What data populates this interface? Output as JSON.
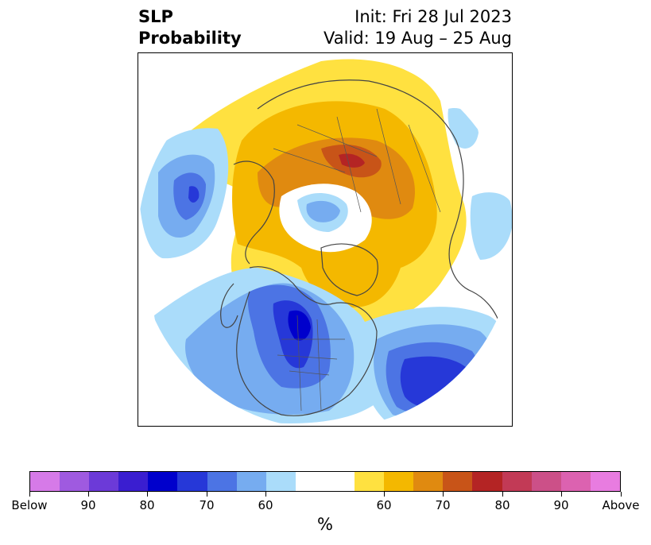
{
  "title": {
    "left_line1": "SLP",
    "left_line2": "Probability",
    "right_line1": "Init: Fri 28 Jul 2023",
    "right_line2": "Valid: 19 Aug – 25 Aug"
  },
  "colorbar": {
    "unit": "%",
    "colors": [
      "#d67ae8",
      "#9f5ae0",
      "#6c3ad8",
      "#3a1ed0",
      "#0000cc",
      "#2638d8",
      "#4c74e4",
      "#76acf0",
      "#aadcfa",
      "#ffffff",
      "#ffe140",
      "#f4b800",
      "#e08a10",
      "#c85418",
      "#b42424",
      "#c23a56",
      "#cc5088",
      "#dc62b0",
      "#e87ce0"
    ],
    "tick_labels": [
      "Below",
      "90",
      "80",
      "70",
      "60",
      "60",
      "70",
      "80",
      "90",
      "Above"
    ]
  },
  "map": {
    "projection": "north-polar-stereographic",
    "region": "Northern Hemisphere"
  }
}
